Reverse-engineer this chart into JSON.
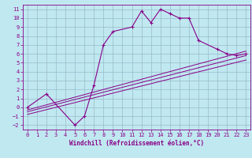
{
  "xlabel": "Windchill (Refroidissement éolien,°C)",
  "xlim": [
    -0.5,
    23.5
  ],
  "ylim": [
    -2.5,
    11.5
  ],
  "xticks": [
    0,
    1,
    2,
    3,
    4,
    5,
    6,
    7,
    8,
    9,
    10,
    11,
    12,
    13,
    14,
    15,
    16,
    17,
    18,
    19,
    20,
    21,
    22,
    23
  ],
  "yticks": [
    -2,
    -1,
    0,
    1,
    2,
    3,
    4,
    5,
    6,
    7,
    8,
    9,
    10,
    11
  ],
  "bg_color": "#c0e8f0",
  "grid_color": "#99bbcc",
  "line_color": "#880088",
  "series0": {
    "x": [
      0,
      2,
      5,
      6,
      7,
      8,
      9,
      11,
      12,
      13,
      14,
      15,
      16,
      17,
      18,
      20,
      21,
      22,
      23
    ],
    "y": [
      0,
      1.5,
      -2,
      -1,
      2.5,
      7.0,
      8.5,
      9.0,
      10.8,
      9.5,
      11.0,
      10.5,
      10.0,
      10.0,
      7.5,
      6.5,
      6.0,
      5.8,
      6.0
    ]
  },
  "linear_lines": [
    {
      "x": [
        0,
        23
      ],
      "y": [
        -0.3,
        6.3
      ]
    },
    {
      "x": [
        0,
        23
      ],
      "y": [
        -0.5,
        5.8
      ]
    },
    {
      "x": [
        0,
        23
      ],
      "y": [
        -0.8,
        5.3
      ]
    }
  ],
  "tick_fontsize": 5,
  "xlabel_fontsize": 5.5
}
